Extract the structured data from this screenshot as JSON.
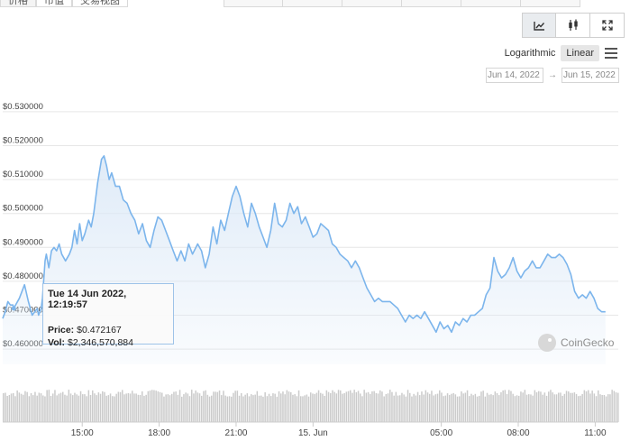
{
  "top_tabs": [
    "价格",
    "市值",
    "交易视图"
  ],
  "toggle_icons": {
    "line": "line-chart-icon",
    "candle": "candlestick-icon",
    "expand": "fullscreen-icon"
  },
  "scale": {
    "log_label": "Logarithmic",
    "linear_label": "Linear",
    "active": "linear"
  },
  "date_range": {
    "from": "Jun 14, 2022",
    "separator": "→",
    "to": "Jun 15, 2022"
  },
  "tooltip": {
    "date": "Tue 14 Jun 2022, 12:19:57",
    "price_label": "Price:",
    "price_value": "$0.472167",
    "vol_label": "Vol:",
    "vol_value": "$2,346,570,884"
  },
  "watermark": "CoinGecko",
  "colors": {
    "line": "#7cb5ec",
    "area_top": "#dce9f7",
    "volume": "#c2c2c2",
    "grid": "#e6e6e6",
    "tooltip_border": "#9ec3e8"
  },
  "chart_data": {
    "type": "area",
    "y_ticks": [
      {
        "value": 0.46,
        "label": "$0.460000"
      },
      {
        "value": 0.47,
        "label": "$0.470000"
      },
      {
        "value": 0.48,
        "label": "$0.480000"
      },
      {
        "value": 0.49,
        "label": "$0.490000"
      },
      {
        "value": 0.5,
        "label": "$0.500000"
      },
      {
        "value": 0.51,
        "label": "$0.510000"
      },
      {
        "value": 0.52,
        "label": "$0.520000"
      },
      {
        "value": 0.53,
        "label": "$0.530000"
      }
    ],
    "ylim": [
      0.4555,
      0.5345
    ],
    "x_ticks": [
      {
        "t": 15,
        "label": "15:00"
      },
      {
        "t": 18,
        "label": "18:00"
      },
      {
        "t": 21,
        "label": "21:00"
      },
      {
        "t": 24,
        "label": "15. Jun"
      },
      {
        "t": 29,
        "label": "05:00"
      },
      {
        "t": 32,
        "label": "08:00"
      },
      {
        "t": 35,
        "label": "11:00"
      }
    ],
    "xlim": [
      11.9,
      35.9
    ],
    "price": [
      [
        11.9,
        0.469
      ],
      [
        12.0,
        0.471
      ],
      [
        12.1,
        0.474
      ],
      [
        12.2,
        0.473
      ],
      [
        12.3,
        0.473
      ],
      [
        12.33,
        0.472
      ],
      [
        12.55,
        0.475
      ],
      [
        12.75,
        0.479
      ],
      [
        12.9,
        0.474
      ],
      [
        13.05,
        0.47
      ],
      [
        13.25,
        0.472
      ],
      [
        13.3,
        0.47
      ],
      [
        13.4,
        0.472
      ],
      [
        13.45,
        0.475
      ],
      [
        13.55,
        0.486
      ],
      [
        13.6,
        0.488
      ],
      [
        13.7,
        0.484
      ],
      [
        13.8,
        0.489
      ],
      [
        13.9,
        0.49
      ],
      [
        14.0,
        0.489
      ],
      [
        14.1,
        0.491
      ],
      [
        14.2,
        0.488
      ],
      [
        14.35,
        0.486
      ],
      [
        14.5,
        0.488
      ],
      [
        14.6,
        0.49
      ],
      [
        14.7,
        0.495
      ],
      [
        14.8,
        0.491
      ],
      [
        14.9,
        0.497
      ],
      [
        15.0,
        0.492
      ],
      [
        15.1,
        0.494
      ],
      [
        15.25,
        0.498
      ],
      [
        15.35,
        0.496
      ],
      [
        15.45,
        0.5
      ],
      [
        15.6,
        0.509
      ],
      [
        15.75,
        0.516
      ],
      [
        15.85,
        0.517
      ],
      [
        15.95,
        0.514
      ],
      [
        16.05,
        0.51
      ],
      [
        16.15,
        0.512
      ],
      [
        16.3,
        0.508
      ],
      [
        16.45,
        0.508
      ],
      [
        16.6,
        0.504
      ],
      [
        16.75,
        0.503
      ],
      [
        16.9,
        0.5
      ],
      [
        17.05,
        0.498
      ],
      [
        17.2,
        0.494
      ],
      [
        17.35,
        0.497
      ],
      [
        17.5,
        0.492
      ],
      [
        17.65,
        0.49
      ],
      [
        17.8,
        0.495
      ],
      [
        17.95,
        0.499
      ],
      [
        18.1,
        0.498
      ],
      [
        18.25,
        0.495
      ],
      [
        18.4,
        0.492
      ],
      [
        18.55,
        0.489
      ],
      [
        18.7,
        0.486
      ],
      [
        18.85,
        0.489
      ],
      [
        19.0,
        0.486
      ],
      [
        19.15,
        0.491
      ],
      [
        19.3,
        0.488
      ],
      [
        19.5,
        0.491
      ],
      [
        19.65,
        0.489
      ],
      [
        19.8,
        0.484
      ],
      [
        19.95,
        0.488
      ],
      [
        20.1,
        0.496
      ],
      [
        20.25,
        0.491
      ],
      [
        20.4,
        0.498
      ],
      [
        20.55,
        0.495
      ],
      [
        20.7,
        0.5
      ],
      [
        20.85,
        0.505
      ],
      [
        21.0,
        0.508
      ],
      [
        21.15,
        0.505
      ],
      [
        21.3,
        0.5
      ],
      [
        21.45,
        0.496
      ],
      [
        21.6,
        0.503
      ],
      [
        21.75,
        0.5
      ],
      [
        21.9,
        0.496
      ],
      [
        22.05,
        0.493
      ],
      [
        22.2,
        0.49
      ],
      [
        22.35,
        0.495
      ],
      [
        22.5,
        0.503
      ],
      [
        22.65,
        0.497
      ],
      [
        22.8,
        0.496
      ],
      [
        22.95,
        0.498
      ],
      [
        23.1,
        0.503
      ],
      [
        23.25,
        0.5
      ],
      [
        23.4,
        0.502
      ],
      [
        23.55,
        0.497
      ],
      [
        23.7,
        0.499
      ],
      [
        23.85,
        0.496
      ],
      [
        24.0,
        0.493
      ],
      [
        24.15,
        0.494
      ],
      [
        24.3,
        0.497
      ],
      [
        24.45,
        0.496
      ],
      [
        24.6,
        0.495
      ],
      [
        24.75,
        0.491
      ],
      [
        24.9,
        0.49
      ],
      [
        25.05,
        0.488
      ],
      [
        25.2,
        0.487
      ],
      [
        25.35,
        0.486
      ],
      [
        25.5,
        0.484
      ],
      [
        25.65,
        0.486
      ],
      [
        25.8,
        0.484
      ],
      [
        25.95,
        0.481
      ],
      [
        26.1,
        0.478
      ],
      [
        26.25,
        0.476
      ],
      [
        26.4,
        0.474
      ],
      [
        26.55,
        0.475
      ],
      [
        26.7,
        0.474
      ],
      [
        26.85,
        0.474
      ],
      [
        27.0,
        0.474
      ],
      [
        27.15,
        0.473
      ],
      [
        27.3,
        0.472
      ],
      [
        27.45,
        0.47
      ],
      [
        27.6,
        0.468
      ],
      [
        27.75,
        0.47
      ],
      [
        27.9,
        0.469
      ],
      [
        28.05,
        0.47
      ],
      [
        28.2,
        0.469
      ],
      [
        28.35,
        0.471
      ],
      [
        28.5,
        0.469
      ],
      [
        28.65,
        0.467
      ],
      [
        28.8,
        0.465
      ],
      [
        28.95,
        0.468
      ],
      [
        29.1,
        0.466
      ],
      [
        29.25,
        0.467
      ],
      [
        29.4,
        0.465
      ],
      [
        29.55,
        0.468
      ],
      [
        29.7,
        0.467
      ],
      [
        29.85,
        0.469
      ],
      [
        30.0,
        0.468
      ],
      [
        30.15,
        0.47
      ],
      [
        30.3,
        0.47
      ],
      [
        30.45,
        0.471
      ],
      [
        30.6,
        0.472
      ],
      [
        30.75,
        0.476
      ],
      [
        30.9,
        0.478
      ],
      [
        31.05,
        0.487
      ],
      [
        31.2,
        0.483
      ],
      [
        31.35,
        0.481
      ],
      [
        31.5,
        0.482
      ],
      [
        31.65,
        0.484
      ],
      [
        31.8,
        0.487
      ],
      [
        31.95,
        0.483
      ],
      [
        32.1,
        0.481
      ],
      [
        32.25,
        0.483
      ],
      [
        32.4,
        0.484
      ],
      [
        32.55,
        0.486
      ],
      [
        32.7,
        0.484
      ],
      [
        32.85,
        0.484
      ],
      [
        33.0,
        0.486
      ],
      [
        33.15,
        0.488
      ],
      [
        33.3,
        0.487
      ],
      [
        33.45,
        0.487
      ],
      [
        33.6,
        0.488
      ],
      [
        33.75,
        0.487
      ],
      [
        33.9,
        0.485
      ],
      [
        34.05,
        0.482
      ],
      [
        34.2,
        0.477
      ],
      [
        34.35,
        0.475
      ],
      [
        34.5,
        0.476
      ],
      [
        34.65,
        0.475
      ],
      [
        34.8,
        0.477
      ],
      [
        34.95,
        0.475
      ],
      [
        35.1,
        0.472
      ],
      [
        35.25,
        0.471
      ],
      [
        35.4,
        0.471
      ]
    ]
  }
}
